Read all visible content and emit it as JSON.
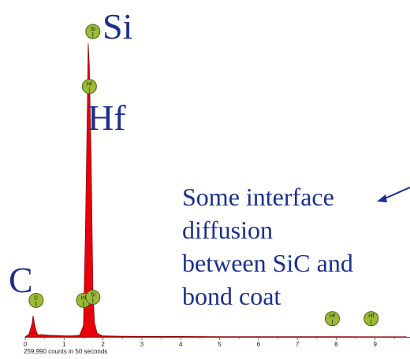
{
  "chart_data": {
    "type": "area",
    "title": "",
    "xlabel": "",
    "ylabel": "",
    "xlim": [
      0,
      9.8
    ],
    "ylim": [
      0,
      260000
    ],
    "x_ticks": [
      "0",
      "1",
      "2",
      "3",
      "4",
      "5",
      "6",
      "7",
      "8",
      "9"
    ],
    "footer": "259,990 counts in 50 seconds",
    "series": [
      {
        "fill_color": "#e8000d",
        "x": [
          0,
          0.1,
          0.18,
          0.2,
          0.25,
          0.3,
          0.35,
          0.4,
          0.5,
          0.6,
          0.8,
          1.0,
          1.2,
          1.4,
          1.5,
          1.55,
          1.6,
          1.62,
          1.65,
          1.7,
          1.74,
          1.78,
          1.85,
          2.0,
          2.5,
          3.0,
          4.0,
          5.0,
          6.0,
          7.0,
          8.0,
          9.0,
          9.8
        ],
        "y": [
          0,
          2500,
          12000,
          18000,
          9000,
          3000,
          1500,
          2000,
          1800,
          1500,
          1200,
          1000,
          900,
          1500,
          10000,
          90000,
          200000,
          250000,
          230000,
          140000,
          40000,
          12000,
          3000,
          900,
          600,
          500,
          400,
          300,
          250,
          200,
          180,
          150,
          120
        ]
      }
    ],
    "element_markers": [
      {
        "symbol": "Si",
        "x": 1.74,
        "label_height": 1
      },
      {
        "symbol": "Hf",
        "x": 1.65,
        "label_height": 0.82
      },
      {
        "symbol": "C",
        "x": 0.28,
        "label_height": 0.12
      },
      {
        "symbol": "Hf",
        "x": 1.5,
        "label_height": 0.12
      },
      {
        "symbol": "Si",
        "x": 1.74,
        "label_height": 0.13
      },
      {
        "symbol": "Hf",
        "x": 7.9,
        "label_height": 0.06
      },
      {
        "symbol": "Hf",
        "x": 8.9,
        "label_height": 0.06
      }
    ],
    "marker_fill": "#9bbb35",
    "marker_stroke": "#4c5f12"
  },
  "overlay_labels": {
    "si": "Si",
    "hf": "Hf",
    "c": "C",
    "annotation_lines": [
      "Some interface",
      "diffusion",
      "between SiC and",
      "bond coat"
    ],
    "text_color": "#1b2f8f"
  }
}
